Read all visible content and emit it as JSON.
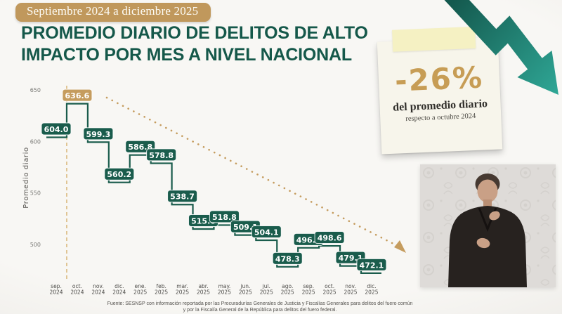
{
  "banner": {
    "label": "Septiembre 2024 a diciembre 2025"
  },
  "title": {
    "line1": "PROMEDIO DIARIO DE DELITOS DE ALTO",
    "line2": "IMPACTO POR MES A NIVEL NACIONAL"
  },
  "callout": {
    "value": "-26%",
    "line1": "del promedio diario",
    "line2": "respecto a octubre 2024"
  },
  "source": {
    "line1": "Fuente: SESNSP con información reportada por las Procuradurías Generales de Justicia y Fiscalías Generales para delitos del fuero común",
    "line2": "y por la Fiscalía General de la República para delitos del fuero federal."
  },
  "colors": {
    "green": "#1a5c4c",
    "title_green": "#15584a",
    "gold": "#c59c5e",
    "gold_light": "#dcba80",
    "banner_bg": "#c0985c",
    "card_bg": "#f7f5eb",
    "card_tab_bg": "#f5f1c3",
    "percent_gold": "#c79d55",
    "arrow_dark": "#14594e",
    "arrow_teal": "#2fa796"
  },
  "chart_data": {
    "type": "line",
    "subtype": "step",
    "title": "Promedio diario de delitos de alto impacto por mes a nivel nacional",
    "ylabel": "Promedio diario",
    "xlabel": "",
    "grid": false,
    "legend": "none",
    "ylim": [
      460,
      665
    ],
    "yticks": [
      650,
      600,
      550,
      500
    ],
    "categories": [
      {
        "month": "sep.",
        "year": "2024"
      },
      {
        "month": "oct.",
        "year": "2024"
      },
      {
        "month": "nov.",
        "year": "2024"
      },
      {
        "month": "dic.",
        "year": "2024"
      },
      {
        "month": "ene.",
        "year": "2025"
      },
      {
        "month": "feb.",
        "year": "2025"
      },
      {
        "month": "mar.",
        "year": "2025"
      },
      {
        "month": "abr.",
        "year": "2025"
      },
      {
        "month": "may.",
        "year": "2025"
      },
      {
        "month": "jun.",
        "year": "2025"
      },
      {
        "month": "jul.",
        "year": "2025"
      },
      {
        "month": "ago.",
        "year": "2025"
      },
      {
        "month": "sep.",
        "year": "2025"
      },
      {
        "month": "oct.",
        "year": "2025"
      },
      {
        "month": "nov.",
        "year": "2025"
      },
      {
        "month": "dic.",
        "year": "2025"
      }
    ],
    "values": [
      604.0,
      636.6,
      599.3,
      560.2,
      586.8,
      578.8,
      538.7,
      515.0,
      518.8,
      509.1,
      504.1,
      478.3,
      496.7,
      498.6,
      479.1,
      472.1
    ],
    "highlight_index": 1,
    "reference_line_month": "oct. 2024",
    "trend_annotation": "dotted declining arrow from oct. 2024 peak to dic. 2025"
  }
}
